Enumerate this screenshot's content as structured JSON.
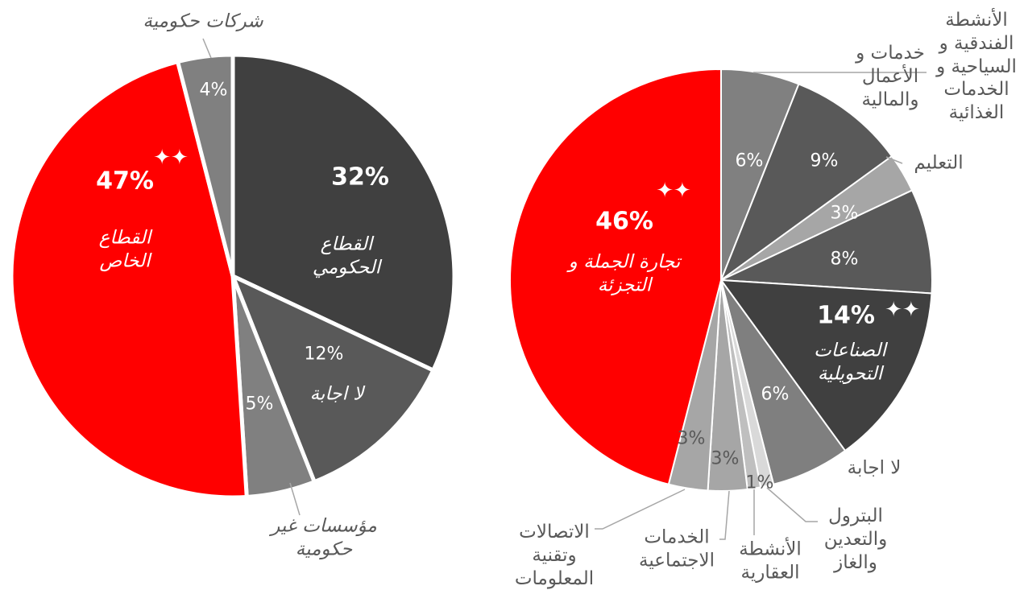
{
  "chart_data": [
    {
      "type": "pie",
      "categories": [
        "القطاع الحكومي",
        "لا اجابة",
        "مؤسسات غير حكومية",
        "القطاع الخاص",
        "شركات حكومية"
      ],
      "values": [
        32,
        12,
        5,
        47,
        4
      ],
      "value_labels": [
        "32%",
        "12%",
        "5%",
        "47%",
        "4%"
      ],
      "colors": [
        "#404040",
        "#595959",
        "#808080",
        "#ff0000",
        "#808080"
      ]
    },
    {
      "type": "pie",
      "categories": [
        "الأنشطة الفندقية و السياحية و الخدمات الغذائية",
        "خدمات و الأعمال والمالية",
        "التعليم",
        null,
        "الصناعات التحويلية",
        "لا اجابة",
        "البترول والتعدين والغاز",
        "الأنشطة العقارية",
        "الخدمات الاجتماعية",
        "الاتصالات وتقنية المعلومات",
        "تجارة الجملة و التجزئة"
      ],
      "values": [
        6,
        9,
        3,
        8,
        14,
        6,
        1,
        1,
        3,
        3,
        46
      ],
      "value_labels": [
        "6%",
        "9%",
        "3%",
        "8%",
        "14%",
        "6%",
        "1%",
        null,
        "3%",
        "3%",
        "46%"
      ],
      "colors": [
        "#808080",
        "#595959",
        "#a6a6a6",
        "#595959",
        "#404040",
        "#7f7f7f",
        "#d9d9d9",
        "#bfbfbf",
        "#a6a6a6",
        "#a6a6a6",
        "#ff0000"
      ]
    }
  ]
}
